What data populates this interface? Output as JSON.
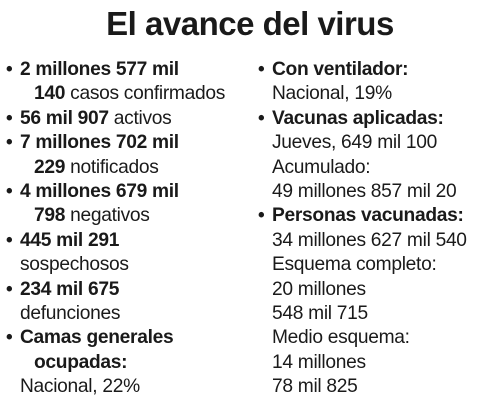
{
  "title": "El avance del virus",
  "left": {
    "confirmados": {
      "number_a": "2 millones 577 mil",
      "number_b": "140",
      "label": " casos confirmados"
    },
    "activos": {
      "number": "56 mil 907",
      "label": " activos"
    },
    "notificados": {
      "number_a": "7 millones 702 mil",
      "number_b": "229",
      "label": " notificados"
    },
    "negativos": {
      "number_a": "4 millones 679 mil",
      "number_b": "798",
      "label": " negativos"
    },
    "sospechosos": {
      "number": "445 mil 291",
      "label": "sospechosos"
    },
    "defunciones": {
      "number": "234 mil 675",
      "label": "defunciones"
    },
    "camas": {
      "heading_a": "Camas generales",
      "heading_b": "ocupadas:",
      "value": "Nacional, 22%"
    }
  },
  "right": {
    "ventilador": {
      "heading": "Con ventilador:",
      "value": "Nacional, 19%"
    },
    "vacunas": {
      "heading": "Vacunas aplicadas:",
      "jueves": "Jueves, 649 mil 100",
      "acumulado_label": "Acumulado:",
      "acumulado_value": "49 millones 857 mil 20"
    },
    "personas": {
      "heading": "Personas vacunadas:",
      "total": "34 millones 627 mil 540",
      "completo_label": "Esquema completo:",
      "completo_a": "20 millones",
      "completo_b": "548 mil 715",
      "medio_label": "Medio esquema:",
      "medio_a": "14 millones",
      "medio_b": "78 mil 825"
    }
  },
  "bullet_glyph": "•"
}
